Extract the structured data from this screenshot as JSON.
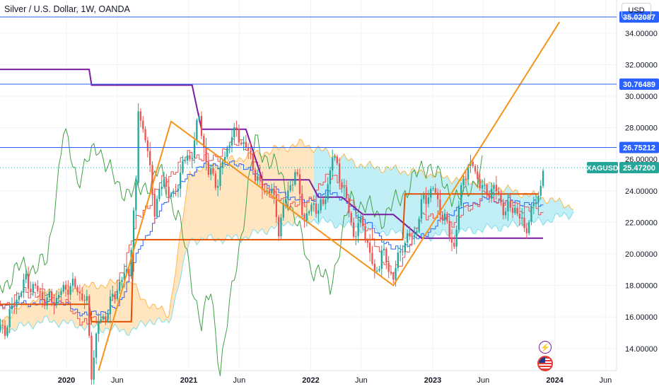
{
  "header": {
    "title": "Silver / U.S. Dollar, 1W, OANDA",
    "currency": "USD"
  },
  "events": {
    "flash_icon": "lightning-icon",
    "flag_icon": "us-flag-icon"
  },
  "colors": {
    "up": "#26a69a",
    "down": "#ef5350",
    "price_line": "#26a69a",
    "hline": "#2962ff",
    "trendline": "#f7931a",
    "purple": "#7b1fa2",
    "orange_level": "#e65100",
    "lagging": "#43a047",
    "conversion": "#ef5350",
    "base": "#2962ff",
    "cloud_up": "#b2ebf2",
    "cloud_down": "#ffe0b2"
  },
  "chart_data": {
    "type": "candlestick",
    "symbol": "XAGUSD",
    "interval": "1W",
    "source": "OANDA",
    "ylim": [
      12.6,
      36.1
    ],
    "x_ticks": [
      "2020",
      "Jun",
      "2021",
      "Jun",
      "2022",
      "Jun",
      "2023",
      "Jun",
      "2024",
      "Jun"
    ],
    "y_ticks": [
      "14.00000",
      "16.00000",
      "18.00000",
      "20.00000",
      "22.00000",
      "24.00000",
      "26.00000",
      "28.00000",
      "30.00000",
      "32.00000",
      "34.00000"
    ],
    "last_price": {
      "label": "XAGUSD",
      "value": "25.47200",
      "y": 25.472
    },
    "horizontal_levels": [
      {
        "label": "35.02087",
        "y": 35.02087
      },
      {
        "label": "30.76489",
        "y": 30.76489
      },
      {
        "label": "26.75212",
        "y": 26.75212
      }
    ],
    "trendlines": [
      {
        "points": [
          [
            "2020-04-06",
            12.6
          ],
          [
            "2020-11-09",
            28.4
          ],
          [
            "2022-09-05",
            18.0
          ],
          [
            "2024-01-15",
            34.7
          ]
        ]
      }
    ],
    "purple_level": [
      [
        "2019-06-03",
        31.7
      ],
      [
        "2020-03-09",
        31.7
      ],
      [
        "2020-03-16",
        30.7
      ],
      [
        "2021-01-11",
        30.7
      ],
      [
        "2021-02-08",
        27.9
      ],
      [
        "2021-06-21",
        27.9
      ],
      [
        "2021-08-09",
        24.7
      ],
      [
        "2021-12-27",
        24.7
      ],
      [
        "2022-01-24",
        23.6
      ],
      [
        "2022-04-04",
        23.6
      ],
      [
        "2022-06-06",
        22.5
      ],
      [
        "2022-09-05",
        22.5
      ],
      [
        "2022-11-28",
        21.0
      ],
      [
        "2023-11-27",
        21.0
      ]
    ],
    "orange_level": [
      [
        "2019-06-03",
        16.8
      ],
      [
        "2020-03-09",
        16.8
      ],
      [
        "2020-03-16",
        15.7
      ],
      [
        "2020-07-13",
        15.7
      ],
      [
        "2020-07-20",
        20.9
      ],
      [
        "2022-10-03",
        20.9
      ],
      [
        "2022-10-10",
        23.8
      ],
      [
        "2023-11-13",
        23.8
      ]
    ],
    "cloud_top": [
      [
        "2019-06-03",
        15.6
      ],
      [
        "2019-11-04",
        17.6
      ],
      [
        "2020-03-02",
        17.9
      ],
      [
        "2020-07-13",
        18.3
      ],
      [
        "2020-08-10",
        17.2
      ],
      [
        "2020-11-02",
        16.1
      ],
      [
        "2021-01-04",
        25.2
      ],
      [
        "2021-06-07",
        26.1
      ],
      [
        "2021-12-06",
        27.0
      ],
      [
        "2022-06-06",
        25.6
      ],
      [
        "2022-12-05",
        25.1
      ],
      [
        "2023-06-05",
        24.4
      ],
      [
        "2023-12-04",
        23.5
      ],
      [
        "2024-02-26",
        23.0
      ]
    ],
    "cloud_bottom": [
      [
        "2019-06-03",
        15.0
      ],
      [
        "2019-11-04",
        15.8
      ],
      [
        "2020-03-02",
        15.4
      ],
      [
        "2020-07-13",
        15.1
      ],
      [
        "2020-09-07",
        15.8
      ],
      [
        "2020-11-02",
        15.6
      ],
      [
        "2021-01-04",
        20.9
      ],
      [
        "2021-06-07",
        21.0
      ],
      [
        "2021-12-06",
        22.3
      ],
      [
        "2022-06-06",
        21.6
      ],
      [
        "2022-12-05",
        21.1
      ],
      [
        "2023-06-05",
        21.6
      ],
      [
        "2023-12-04",
        22.1
      ],
      [
        "2024-02-26",
        22.6
      ]
    ],
    "tenkan": [
      [
        "2019-06-03",
        16.5
      ],
      [
        "2019-09-02",
        17.6
      ],
      [
        "2019-12-02",
        17.3
      ],
      [
        "2020-03-02",
        15.5
      ],
      [
        "2020-05-04",
        16.2
      ],
      [
        "2020-07-27",
        22.0
      ],
      [
        "2020-10-05",
        24.4
      ],
      [
        "2021-01-04",
        26.4
      ],
      [
        "2021-03-01",
        25.9
      ],
      [
        "2021-06-07",
        27.3
      ],
      [
        "2021-09-06",
        23.6
      ],
      [
        "2021-12-06",
        23.0
      ],
      [
        "2022-03-07",
        25.2
      ],
      [
        "2022-06-06",
        21.9
      ],
      [
        "2022-09-05",
        18.6
      ],
      [
        "2022-12-05",
        22.6
      ],
      [
        "2023-03-06",
        22.1
      ],
      [
        "2023-06-05",
        23.8
      ],
      [
        "2023-09-04",
        23.1
      ],
      [
        "2023-11-27",
        22.6
      ]
    ],
    "kijun": [
      [
        "2019-06-03",
        16.7
      ],
      [
        "2019-12-02",
        17.0
      ],
      [
        "2020-03-02",
        16.1
      ],
      [
        "2020-06-01",
        16.6
      ],
      [
        "2020-08-10",
        20.6
      ],
      [
        "2020-11-02",
        23.7
      ],
      [
        "2021-02-01",
        25.6
      ],
      [
        "2021-06-07",
        25.7
      ],
      [
        "2021-09-06",
        24.1
      ],
      [
        "2021-12-06",
        23.3
      ],
      [
        "2022-03-07",
        24.0
      ],
      [
        "2022-06-06",
        22.2
      ],
      [
        "2022-09-05",
        20.2
      ],
      [
        "2022-12-05",
        21.2
      ],
      [
        "2023-03-06",
        22.8
      ],
      [
        "2023-06-05",
        23.5
      ],
      [
        "2023-11-27",
        23.1
      ]
    ],
    "chikou": [
      [
        "2019-06-03",
        17.5
      ],
      [
        "2019-08-05",
        19.0
      ],
      [
        "2019-11-04",
        19.4
      ],
      [
        "2019-12-23",
        27.7
      ],
      [
        "2020-02-03",
        24.8
      ],
      [
        "2020-04-06",
        26.9
      ],
      [
        "2020-06-01",
        24.2
      ],
      [
        "2020-08-03",
        23.9
      ],
      [
        "2020-10-05",
        25.2
      ],
      [
        "2020-11-30",
        22.4
      ],
      [
        "2021-02-08",
        15.5
      ],
      [
        "2021-03-08",
        17.6
      ],
      [
        "2021-04-05",
        12.7
      ],
      [
        "2021-05-24",
        19.4
      ],
      [
        "2021-07-19",
        27.1
      ],
      [
        "2021-10-04",
        25.0
      ],
      [
        "2021-12-27",
        19.4
      ],
      [
        "2022-02-28",
        18.0
      ],
      [
        "2022-05-02",
        23.5
      ],
      [
        "2022-08-08",
        22.3
      ],
      [
        "2022-10-31",
        24.6
      ],
      [
        "2022-12-19",
        25.8
      ],
      [
        "2023-02-06",
        24.2
      ],
      [
        "2023-04-03",
        23.4
      ],
      [
        "2023-05-29",
        25.6
      ]
    ],
    "close_series": [
      [
        "2019-06-03",
        15.1
      ],
      [
        "2019-07-01",
        15.3
      ],
      [
        "2019-08-05",
        17.2
      ],
      [
        "2019-09-02",
        18.3
      ],
      [
        "2019-10-07",
        17.6
      ],
      [
        "2019-11-04",
        17.0
      ],
      [
        "2019-12-02",
        17.2
      ],
      [
        "2020-01-06",
        18.0
      ],
      [
        "2020-02-03",
        17.8
      ],
      [
        "2020-03-02",
        16.8
      ],
      [
        "2020-03-16",
        12.6
      ],
      [
        "2020-04-06",
        15.6
      ],
      [
        "2020-05-04",
        16.4
      ],
      [
        "2020-06-01",
        17.9
      ],
      [
        "2020-07-06",
        19.0
      ],
      [
        "2020-07-27",
        24.1
      ],
      [
        "2020-08-03",
        29.2
      ],
      [
        "2020-08-24",
        27.4
      ],
      [
        "2020-09-21",
        22.9
      ],
      [
        "2020-10-19",
        24.7
      ],
      [
        "2020-11-16",
        23.4
      ],
      [
        "2020-12-14",
        25.8
      ],
      [
        "2021-01-04",
        26.0
      ],
      [
        "2021-02-01",
        28.6
      ],
      [
        "2021-03-01",
        25.1
      ],
      [
        "2021-03-29",
        24.6
      ],
      [
        "2021-05-10",
        27.7
      ],
      [
        "2021-06-07",
        27.3
      ],
      [
        "2021-07-05",
        26.1
      ],
      [
        "2021-08-02",
        24.2
      ],
      [
        "2021-09-06",
        24.0
      ],
      [
        "2021-09-27",
        21.7
      ],
      [
        "2021-10-25",
        24.0
      ],
      [
        "2021-11-15",
        25.2
      ],
      [
        "2021-12-13",
        22.2
      ],
      [
        "2022-01-10",
        23.1
      ],
      [
        "2022-02-07",
        22.9
      ],
      [
        "2022-03-07",
        26.2
      ],
      [
        "2022-04-04",
        24.6
      ],
      [
        "2022-05-09",
        21.3
      ],
      [
        "2022-06-06",
        22.0
      ],
      [
        "2022-07-11",
        18.6
      ],
      [
        "2022-08-01",
        20.1
      ],
      [
        "2022-09-05",
        18.5
      ],
      [
        "2022-10-03",
        20.7
      ],
      [
        "2022-11-07",
        21.2
      ],
      [
        "2022-12-05",
        23.5
      ],
      [
        "2023-01-02",
        24.1
      ],
      [
        "2023-02-06",
        22.1
      ],
      [
        "2023-03-06",
        20.5
      ],
      [
        "2023-04-03",
        25.1
      ],
      [
        "2023-05-01",
        25.6
      ],
      [
        "2023-06-05",
        23.8
      ],
      [
        "2023-07-03",
        24.2
      ],
      [
        "2023-08-07",
        22.7
      ],
      [
        "2023-09-04",
        23.0
      ],
      [
        "2023-10-02",
        21.5
      ],
      [
        "2023-10-30",
        23.0
      ],
      [
        "2023-11-13",
        23.7
      ],
      [
        "2023-11-27",
        25.472
      ]
    ]
  }
}
